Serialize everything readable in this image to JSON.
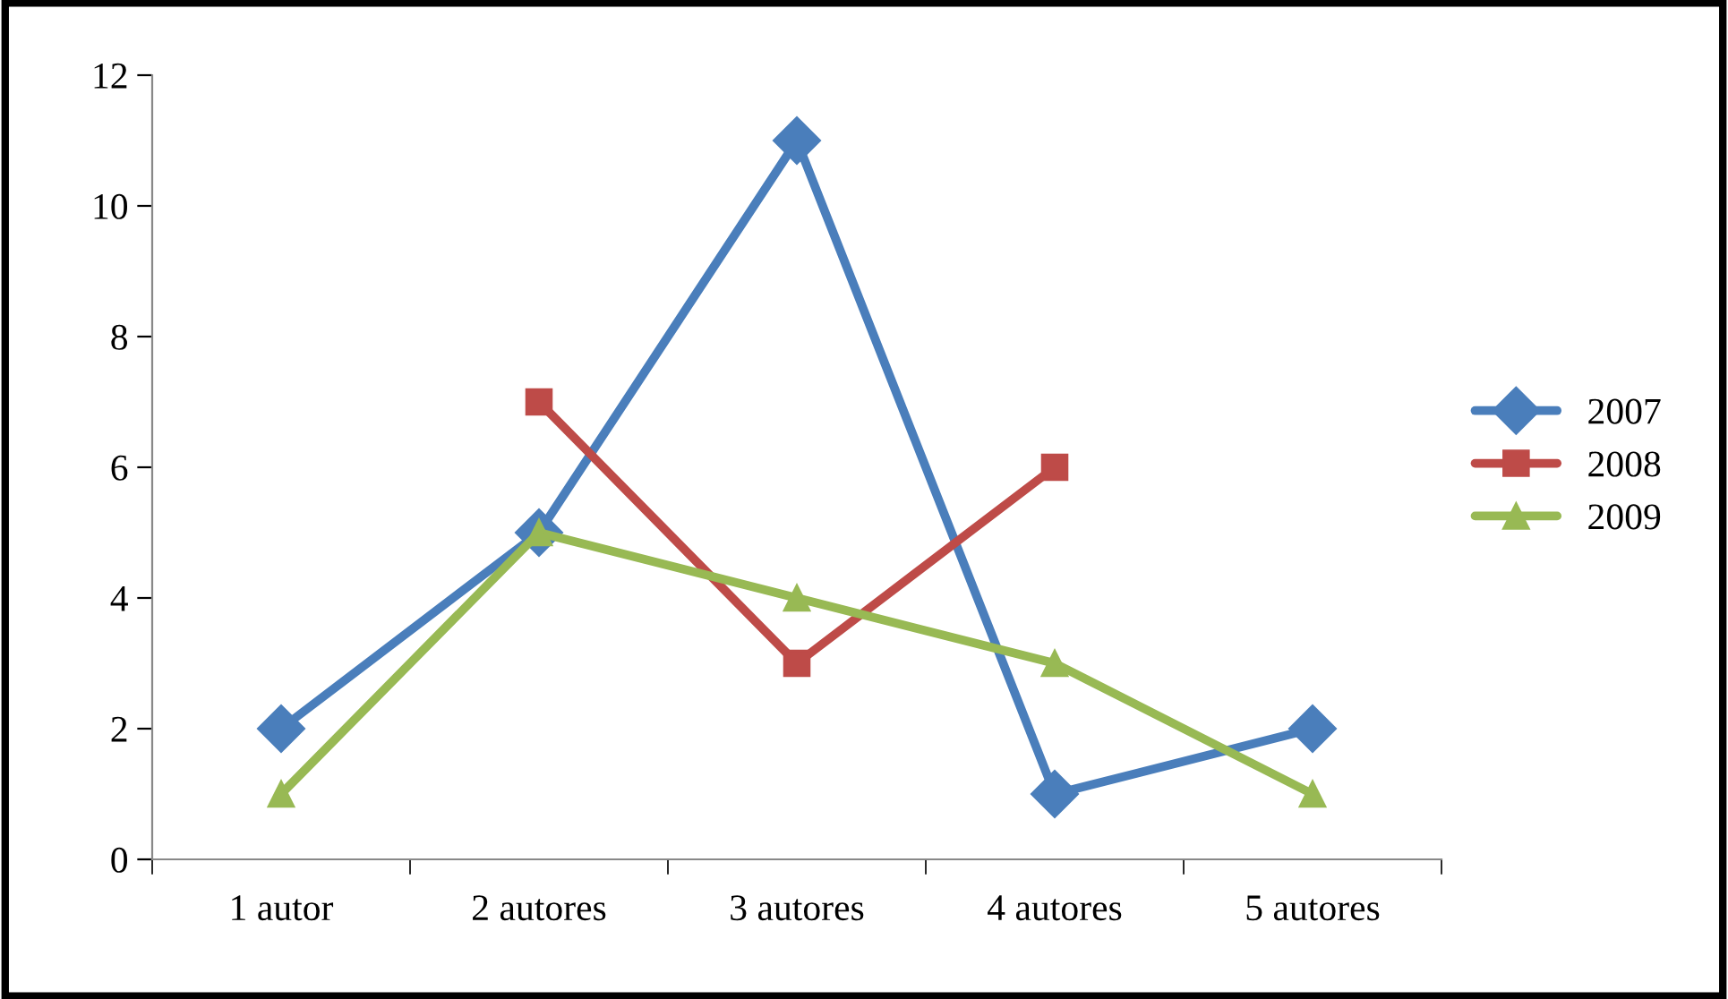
{
  "chart_data": {
    "type": "line",
    "categories": [
      "1 autor",
      "2 autores",
      "3 autores",
      "4 autores",
      "5 autores"
    ],
    "series": [
      {
        "name": "2007",
        "color": "#4a7ebb",
        "marker": "diamond",
        "values": [
          2,
          5,
          11,
          1,
          2
        ]
      },
      {
        "name": "2008",
        "color": "#be4b48",
        "marker": "square",
        "values": [
          null,
          7,
          3,
          6,
          null
        ]
      },
      {
        "name": "2009",
        "color": "#98b954",
        "marker": "triangle",
        "values": [
          1,
          5,
          4,
          3,
          1
        ]
      }
    ],
    "ylim": [
      0,
      12
    ],
    "yticks": [
      0,
      2,
      4,
      6,
      8,
      10,
      12
    ],
    "grid": false,
    "legend": "right",
    "line_style": "solid"
  }
}
